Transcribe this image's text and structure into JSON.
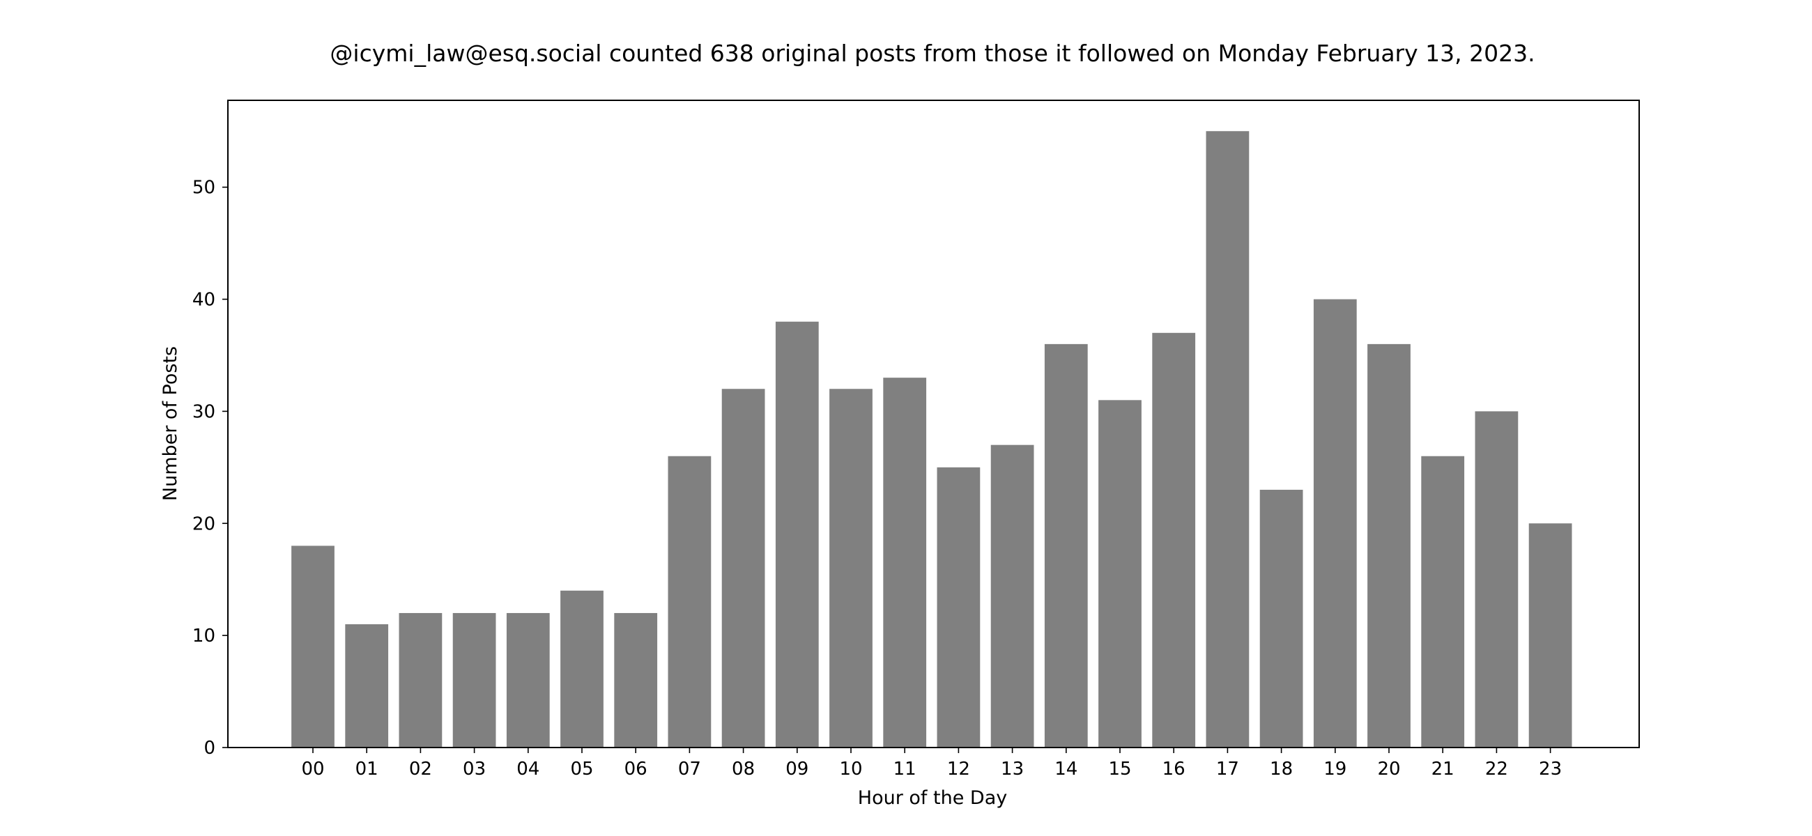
{
  "chart_data": {
    "type": "bar",
    "title": "@icymi_law@esq.social counted 638 original posts from those it followed on Monday February 13, 2023.",
    "xlabel": "Hour of the Day",
    "ylabel": "Number of Posts",
    "categories": [
      "00",
      "01",
      "02",
      "03",
      "04",
      "05",
      "06",
      "07",
      "08",
      "09",
      "10",
      "11",
      "12",
      "13",
      "14",
      "15",
      "16",
      "17",
      "18",
      "19",
      "20",
      "21",
      "22",
      "23"
    ],
    "values": [
      18,
      11,
      12,
      12,
      12,
      14,
      12,
      26,
      32,
      38,
      32,
      33,
      25,
      27,
      36,
      31,
      37,
      55,
      23,
      40,
      36,
      26,
      30,
      20
    ],
    "ylim": [
      0,
      57.75
    ],
    "yticks": [
      0,
      10,
      20,
      30,
      40,
      50
    ],
    "grid": false,
    "legend": "none",
    "colors": {
      "bar": "#808080",
      "axes": "#000000",
      "background": "#ffffff"
    }
  }
}
